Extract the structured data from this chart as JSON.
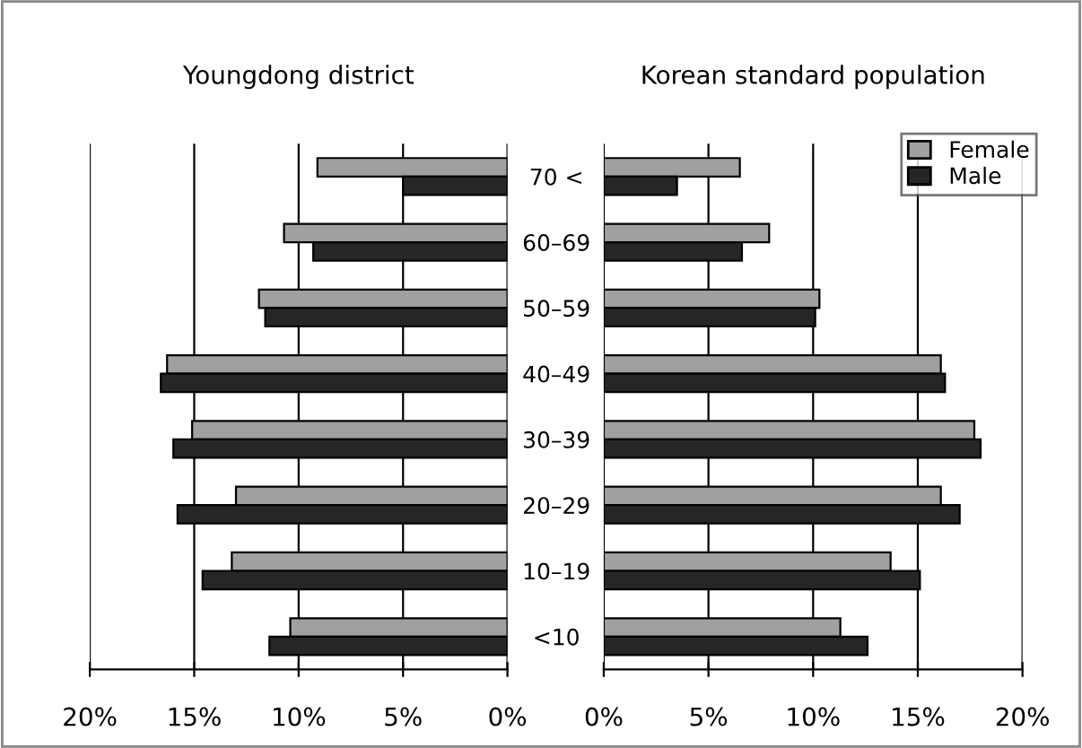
{
  "chart_data": [
    {
      "type": "bar",
      "orientation": "horizontal",
      "title": "Youngdong district",
      "categories": [
        null,
        null,
        null,
        null,
        null,
        null,
        null,
        null
      ],
      "series": [
        {
          "color": "#a0a0a0",
          "values": [
            9.1,
            10.7,
            11.9,
            16.3,
            15.1,
            13.0,
            13.2,
            10.4
          ]
        },
        {
          "color": "#262626",
          "values": [
            5.0,
            9.3,
            11.6,
            16.6,
            16.0,
            15.8,
            14.6,
            11.4
          ]
        }
      ],
      "xlim": [
        20,
        0
      ],
      "xticks": [
        {
          "value": 20,
          "label": "20%"
        },
        {
          "value": 15,
          "label": "15%"
        },
        {
          "value": 10,
          "label": "10%"
        },
        {
          "value": 5,
          "label": "5%"
        },
        {
          "value": 0,
          "label": "0%"
        }
      ],
      "grid": "x"
    },
    {
      "type": "bar",
      "orientation": "horizontal",
      "title": "Korean standard population",
      "categories": [
        "70 <",
        "60–69",
        "50–59",
        "40–49",
        "30–39",
        "20–29",
        "10–19",
        "<10"
      ],
      "series": [
        {
          "name": "Female",
          "color": "#a0a0a0",
          "values": [
            6.5,
            7.9,
            10.3,
            16.1,
            17.7,
            16.1,
            13.7,
            11.3
          ]
        },
        {
          "name": "Male",
          "color": "#262626",
          "values": [
            3.5,
            6.6,
            10.1,
            16.3,
            18.0,
            17.0,
            15.1,
            12.6
          ]
        }
      ],
      "xlim": [
        0,
        20
      ],
      "xticks": [
        {
          "value": 0,
          "label": "0%"
        },
        {
          "value": 5,
          "label": "5%"
        },
        {
          "value": 10,
          "label": "10%"
        },
        {
          "value": 15,
          "label": "15%"
        },
        {
          "value": 20,
          "label": "20%"
        }
      ],
      "grid": "x",
      "legend": "top right"
    }
  ]
}
